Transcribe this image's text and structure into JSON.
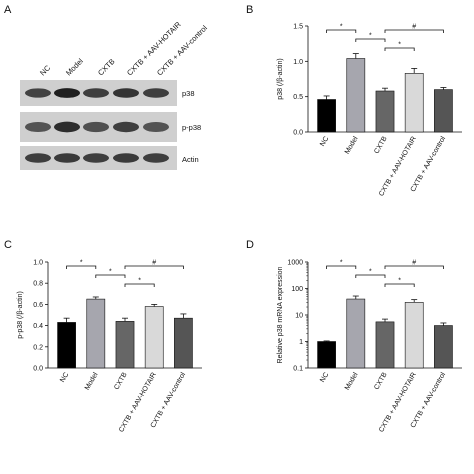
{
  "panels": {
    "A": "A",
    "B": "B",
    "C": "C",
    "D": "D"
  },
  "blot": {
    "lanes": [
      "NC",
      "Model",
      "CXTB",
      "CXTB + AAV-HOTAIR",
      "CXTB + AAV-control"
    ],
    "rows": [
      {
        "label": "p38",
        "intensity": [
          0.78,
          0.95,
          0.8,
          0.85,
          0.8
        ]
      },
      {
        "label": "p-p38",
        "intensity": [
          0.7,
          0.88,
          0.72,
          0.8,
          0.7
        ]
      },
      {
        "label": "Actin",
        "intensity": [
          0.8,
          0.82,
          0.8,
          0.82,
          0.8
        ]
      }
    ]
  },
  "chart_data": [
    {
      "panel": "B",
      "type": "bar",
      "categories": [
        "NC",
        "Model",
        "CXTB",
        "CXTB + AAV-HOTAIR",
        "CXTB + AAV-control"
      ],
      "values": [
        0.46,
        1.04,
        0.58,
        0.83,
        0.6
      ],
      "errors": [
        0.05,
        0.07,
        0.04,
        0.07,
        0.03
      ],
      "colors": [
        "#000000",
        "#a6a6ae",
        "#666666",
        "#d9d9d9",
        "#555555"
      ],
      "ylabel": "p38 (/β-actin)",
      "ylim": [
        0,
        1.5
      ],
      "yticks": [
        0.0,
        0.5,
        1.0,
        1.5
      ],
      "ytick_labels": [
        "0.0",
        "0.5",
        "1.0",
        "1.5"
      ],
      "scale": "linear",
      "brackets": [
        {
          "from": 0,
          "to": 1,
          "level": 0,
          "symbol": "*"
        },
        {
          "from": 1,
          "to": 2,
          "level": 1,
          "symbol": "*"
        },
        {
          "from": 2,
          "to": 3,
          "level": 2,
          "symbol": "*"
        },
        {
          "from": 2,
          "to": 4,
          "level": 0,
          "symbol": "#"
        }
      ]
    },
    {
      "panel": "C",
      "type": "bar",
      "categories": [
        "NC",
        "Model",
        "CXTB",
        "CXTB + AAV-HOTAIR",
        "CXTB + AAV-control"
      ],
      "values": [
        0.43,
        0.65,
        0.44,
        0.58,
        0.47
      ],
      "errors": [
        0.04,
        0.02,
        0.03,
        0.02,
        0.04
      ],
      "colors": [
        "#000000",
        "#a6a6ae",
        "#666666",
        "#d9d9d9",
        "#555555"
      ],
      "ylabel": "p-p38 (/β-actin)",
      "ylim": [
        0,
        1.0
      ],
      "yticks": [
        0.0,
        0.2,
        0.4,
        0.6,
        0.8,
        1.0
      ],
      "ytick_labels": [
        "0.0",
        "0.2",
        "0.4",
        "0.6",
        "0.8",
        "1.0"
      ],
      "scale": "linear",
      "brackets": [
        {
          "from": 0,
          "to": 1,
          "level": 0,
          "symbol": "*"
        },
        {
          "from": 1,
          "to": 2,
          "level": 1,
          "symbol": "*"
        },
        {
          "from": 2,
          "to": 3,
          "level": 2,
          "symbol": "*"
        },
        {
          "from": 2,
          "to": 4,
          "level": 0,
          "symbol": "#"
        }
      ]
    },
    {
      "panel": "D",
      "type": "bar",
      "categories": [
        "NC",
        "Model",
        "CXTB",
        "CXTB + AAV-HOTAIR",
        "CXTB + AAV-control"
      ],
      "values": [
        1.0,
        40,
        5.5,
        30,
        4.0
      ],
      "errors": [
        0.05,
        12,
        1.5,
        8,
        1.0
      ],
      "colors": [
        "#000000",
        "#a6a6ae",
        "#666666",
        "#d9d9d9",
        "#555555"
      ],
      "ylabel": "Relative p38 mRNA expression",
      "ylim": [
        0.1,
        1000
      ],
      "yticks": [
        0.1,
        1,
        10,
        100,
        1000
      ],
      "ytick_labels": [
        "0.1",
        "1",
        "10",
        "100",
        "1000"
      ],
      "scale": "log",
      "brackets": [
        {
          "from": 0,
          "to": 1,
          "level": 0,
          "symbol": "*"
        },
        {
          "from": 1,
          "to": 2,
          "level": 1,
          "symbol": "*"
        },
        {
          "from": 2,
          "to": 3,
          "level": 2,
          "symbol": "*"
        },
        {
          "from": 2,
          "to": 4,
          "level": 0,
          "symbol": "#"
        }
      ]
    }
  ]
}
